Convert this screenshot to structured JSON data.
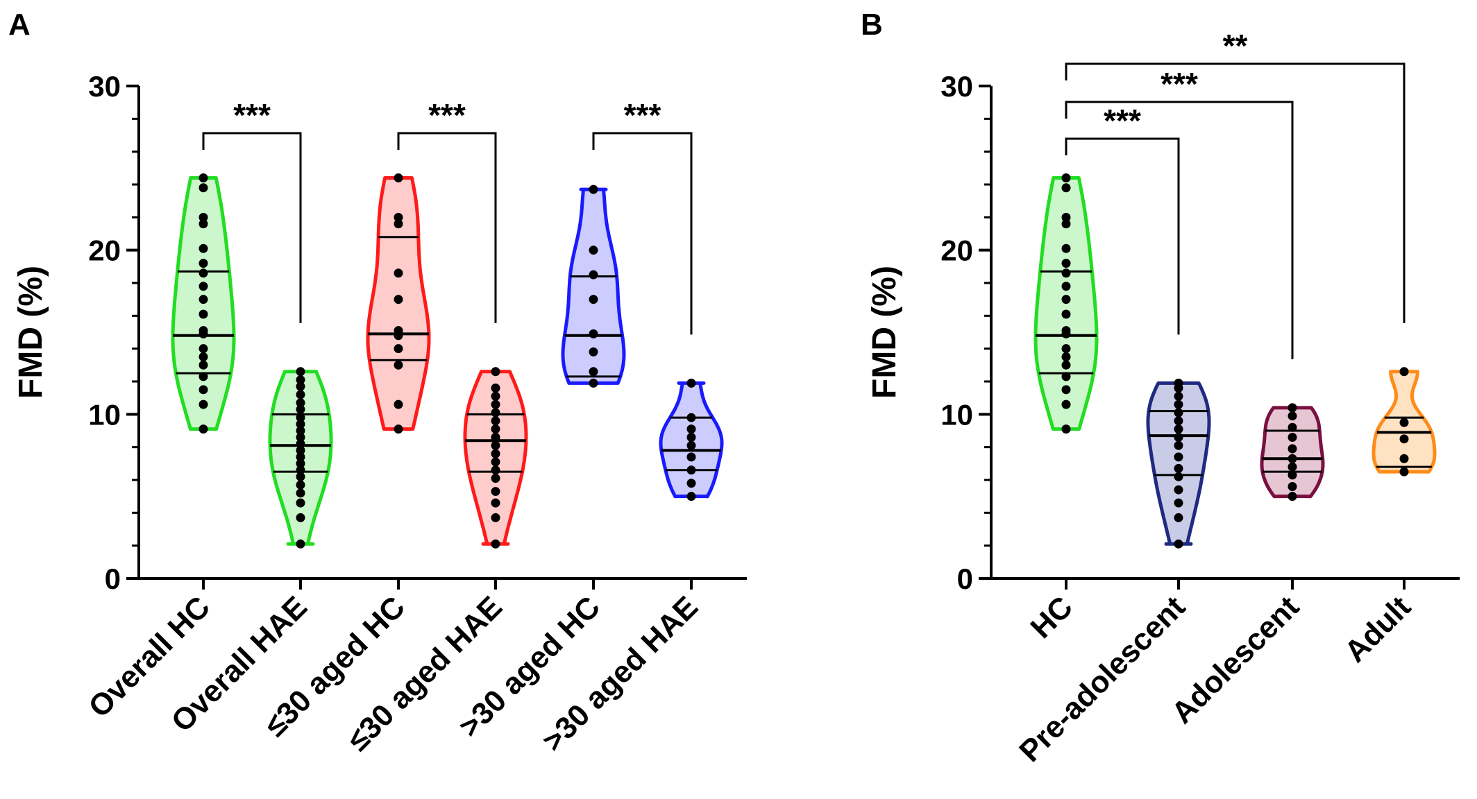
{
  "chart_data": [
    {
      "panel_label": "A",
      "type": "violin",
      "ylabel": "FMD (%)",
      "ylim": [
        0,
        30
      ],
      "yticks": [
        "0",
        "10",
        "20",
        "30"
      ],
      "y_minor_step": 2,
      "grid": false,
      "categories": [
        "Overall HC",
        "Overall HAE",
        "≤30 aged HC",
        "≤30 aged HAE",
        ">30 aged HC",
        ">30 aged HAE"
      ],
      "groups": [
        {
          "name": "Overall HC",
          "color": "#22dd22",
          "fill": "#ccf7cc",
          "min": 9.1,
          "max": 24.4,
          "q1": 12.5,
          "median": 14.8,
          "q3": 18.7,
          "points": [
            24.4,
            23.8,
            22.0,
            21.6,
            20.1,
            19.2,
            18.6,
            17.8,
            17.0,
            16.1,
            15.1,
            14.9,
            14.0,
            13.5,
            13.0,
            12.3,
            11.5,
            10.6,
            9.1
          ]
        },
        {
          "name": "Overall HAE",
          "color": "#22dd22",
          "fill": "#ccf7cc",
          "min": 2.1,
          "max": 12.6,
          "q1": 6.5,
          "median": 8.1,
          "q3": 10.0,
          "points": [
            12.6,
            12.1,
            11.7,
            11.2,
            10.7,
            10.3,
            9.8,
            9.4,
            9.0,
            8.6,
            8.2,
            7.8,
            7.4,
            7.0,
            6.6,
            6.2,
            5.7,
            5.2,
            4.6,
            3.7,
            2.1
          ]
        },
        {
          "name": "≤30 aged HC",
          "color": "#ff1a1a",
          "fill": "#ffcccc",
          "min": 9.1,
          "max": 24.4,
          "q1": 13.3,
          "median": 14.9,
          "q3": 20.8,
          "points": [
            24.4,
            22.0,
            21.6,
            18.6,
            17.0,
            15.1,
            14.8,
            14.0,
            13.0,
            10.6,
            9.1
          ]
        },
        {
          "name": "≤30 aged HAE",
          "color": "#ff1a1a",
          "fill": "#ffcccc",
          "min": 2.1,
          "max": 12.6,
          "q1": 6.5,
          "median": 8.4,
          "q3": 10.0,
          "points": [
            12.6,
            11.6,
            11.1,
            10.6,
            10.1,
            9.6,
            9.1,
            8.6,
            8.1,
            7.6,
            7.1,
            6.6,
            6.1,
            5.3,
            4.6,
            3.7,
            2.1
          ]
        },
        {
          "name": ">30 aged HC",
          "color": "#1a1aff",
          "fill": "#ccccff",
          "min": 11.9,
          "max": 23.7,
          "q1": 12.3,
          "median": 14.8,
          "q3": 18.4,
          "points": [
            23.7,
            20.0,
            18.5,
            17.0,
            14.9,
            13.8,
            12.6,
            11.9
          ]
        },
        {
          "name": ">30 aged HAE",
          "color": "#1a1aff",
          "fill": "#ccccff",
          "min": 5.0,
          "max": 11.9,
          "q1": 6.6,
          "median": 7.8,
          "q3": 9.8,
          "points": [
            11.9,
            9.8,
            9.1,
            8.6,
            8.1,
            7.4,
            6.6,
            5.8,
            5.0
          ]
        }
      ],
      "significance": [
        {
          "from": 0,
          "to": 1,
          "label": "***"
        },
        {
          "from": 2,
          "to": 3,
          "label": "***"
        },
        {
          "from": 4,
          "to": 5,
          "label": "***"
        }
      ]
    },
    {
      "panel_label": "B",
      "type": "violin",
      "ylabel": "FMD (%)",
      "ylim": [
        0,
        30
      ],
      "yticks": [
        "0",
        "10",
        "20",
        "30"
      ],
      "y_minor_step": 2,
      "grid": false,
      "categories": [
        "HC",
        "Pre-adolescent",
        "Adolescent",
        "Adult"
      ],
      "groups": [
        {
          "name": "HC",
          "color": "#22dd22",
          "fill": "#ccf7cc",
          "min": 9.1,
          "max": 24.4,
          "q1": 12.5,
          "median": 14.8,
          "q3": 18.7,
          "points": [
            24.4,
            23.8,
            22.0,
            21.6,
            20.1,
            19.2,
            18.6,
            17.8,
            17.0,
            16.1,
            15.1,
            14.9,
            14.0,
            13.5,
            13.0,
            12.3,
            11.5,
            10.6,
            9.1
          ]
        },
        {
          "name": "Pre-adolescent",
          "color": "#1f2a80",
          "fill": "#c9cce6",
          "min": 2.1,
          "max": 11.9,
          "q1": 6.3,
          "median": 8.7,
          "q3": 10.2,
          "points": [
            11.9,
            11.6,
            11.1,
            10.6,
            10.1,
            9.6,
            9.1,
            8.6,
            8.1,
            7.4,
            6.7,
            6.2,
            5.4,
            4.6,
            3.7,
            2.1
          ]
        },
        {
          "name": "Adolescent",
          "color": "#7a1040",
          "fill": "#e6c6d3",
          "min": 5.0,
          "max": 10.4,
          "q1": 6.5,
          "median": 7.3,
          "q3": 9.0,
          "points": [
            10.4,
            9.9,
            9.2,
            8.6,
            7.9,
            7.3,
            6.8,
            6.3,
            5.6,
            5.0
          ]
        },
        {
          "name": "Adult",
          "color": "#ff8c1a",
          "fill": "#ffe2c2",
          "min": 6.5,
          "max": 12.6,
          "q1": 6.8,
          "median": 8.9,
          "q3": 9.8,
          "points": [
            12.6,
            9.5,
            8.5,
            7.3,
            6.5
          ]
        }
      ],
      "significance": [
        {
          "from": 0,
          "to": 1,
          "label": "***"
        },
        {
          "from": 0,
          "to": 2,
          "label": "***"
        },
        {
          "from": 0,
          "to": 3,
          "label": "**"
        }
      ]
    }
  ]
}
